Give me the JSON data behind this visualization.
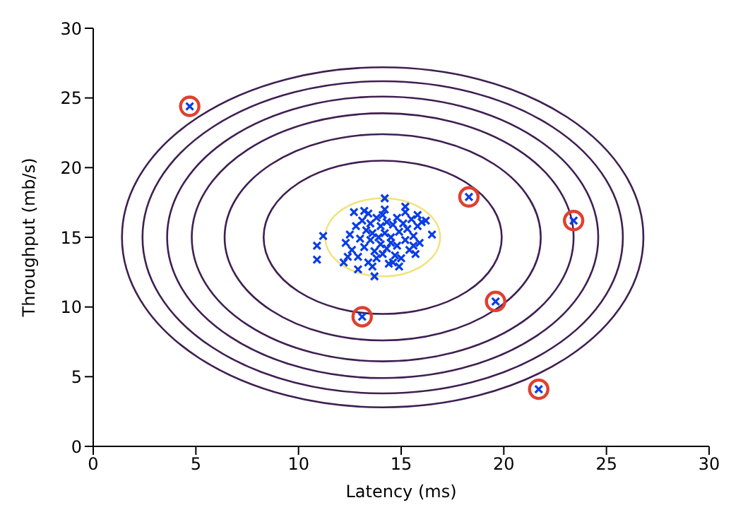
{
  "chart_data": {
    "type": "scatter",
    "xlabel": "Latency (ms)",
    "ylabel": "Throughput (mb/s)",
    "xlim": [
      0,
      30
    ],
    "ylim": [
      0,
      30
    ],
    "xticks": [
      0,
      5,
      10,
      15,
      20,
      25,
      30
    ],
    "yticks": [
      0,
      5,
      10,
      15,
      20,
      25,
      30
    ],
    "grid": false,
    "series": [
      {
        "color": "#0a3de6",
        "marker": "cross",
        "x": [
          12.3,
          12.5,
          12.6,
          12.8,
          12.9,
          13.0,
          13.1,
          13.2,
          13.3,
          13.4,
          13.5,
          13.5,
          13.6,
          13.7,
          13.8,
          13.8,
          13.9,
          14.0,
          14.0,
          14.1,
          14.1,
          14.2,
          14.3,
          14.3,
          14.4,
          14.5,
          14.5,
          14.6,
          14.7,
          14.8,
          14.8,
          14.9,
          15.0,
          15.1,
          15.2,
          15.3,
          15.4,
          15.5,
          15.6,
          15.7,
          15.8,
          15.9,
          16.0,
          13.6,
          14.9,
          12.4,
          14.2,
          13.4,
          15.2,
          15.8,
          11.2,
          10.9,
          10.9,
          12.7,
          13.2,
          14.2,
          15.2,
          16.5,
          16.2,
          12.2,
          12.9,
          13.7,
          14.6,
          15.6,
          4.7,
          18.3,
          23.4,
          19.6,
          13.1,
          21.7
        ],
        "values": [
          14.6,
          15.2,
          14.1,
          15.8,
          13.6,
          14.9,
          16.2,
          14.3,
          15.5,
          13.2,
          14.8,
          16.0,
          15.3,
          14.0,
          16.4,
          13.5,
          15.0,
          14.5,
          15.8,
          16.6,
          13.8,
          15.3,
          14.2,
          16.1,
          13.1,
          15.0,
          14.6,
          15.9,
          13.7,
          16.4,
          14.4,
          15.4,
          13.5,
          16.0,
          14.8,
          15.6,
          14.1,
          16.3,
          15.1,
          13.8,
          15.8,
          14.6,
          16.1,
          12.9,
          12.9,
          13.6,
          17.0,
          16.7,
          16.8,
          16.6,
          15.1,
          14.4,
          13.4,
          16.8,
          16.9,
          17.8,
          17.2,
          15.2,
          16.2,
          13.2,
          12.7,
          12.2,
          13.2,
          14.4,
          24.4,
          17.9,
          16.2,
          10.4,
          9.3,
          4.1
        ]
      },
      {
        "color": "#e0402e",
        "marker": "circle",
        "x": [
          4.7,
          18.3,
          23.4,
          19.6,
          13.1,
          21.7
        ],
        "values": [
          24.4,
          17.9,
          16.2,
          10.4,
          9.3,
          4.1
        ]
      }
    ]
  }
}
